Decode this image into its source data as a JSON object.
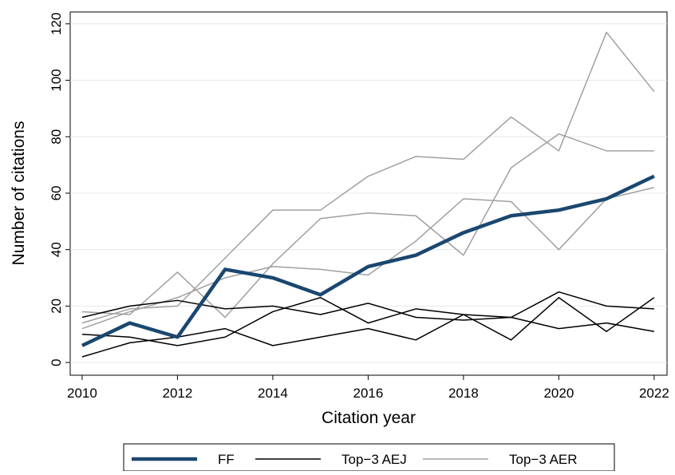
{
  "chart_data": {
    "type": "line",
    "x_label": "Citation year",
    "y_label": "Number of citations",
    "x": [
      2010,
      2011,
      2012,
      2013,
      2014,
      2015,
      2016,
      2017,
      2018,
      2019,
      2020,
      2021,
      2022
    ],
    "xlim": [
      2009.75,
      2022.27
    ],
    "ylim": [
      -4.5,
      124.2
    ],
    "xticks": [
      2010,
      2012,
      2014,
      2016,
      2018,
      2020,
      2022
    ],
    "yticks": [
      0,
      20,
      40,
      60,
      80,
      100,
      120
    ],
    "grid": true,
    "legend": "bottom",
    "series": [
      {
        "name": "FF",
        "color": "#1a476f",
        "width": 4.5,
        "lines": [
          [
            6,
            14,
            9,
            33,
            30,
            24,
            34,
            38,
            46,
            52,
            54,
            58,
            66
          ]
        ]
      },
      {
        "name": "Top−3 AEJ",
        "color": "#000000",
        "width": 1.5,
        "lines": [
          [
            16,
            20,
            22,
            19,
            20,
            17,
            21,
            16,
            15,
            16,
            25,
            20,
            19
          ],
          [
            10,
            9,
            6,
            9,
            18,
            23,
            14,
            19,
            17,
            16,
            12,
            14,
            11
          ],
          [
            2,
            7,
            9,
            12,
            6,
            9,
            12,
            8,
            17,
            8,
            23,
            11,
            23
          ]
        ]
      },
      {
        "name": "Top−3 AER",
        "color": "#a0a0a0",
        "width": 1.5,
        "lines": [
          [
            18,
            17,
            32,
            16,
            35,
            51,
            53,
            52,
            38,
            69,
            81,
            75,
            75
          ],
          [
            14,
            19,
            20,
            37,
            54,
            54,
            66,
            73,
            72,
            87,
            75,
            117,
            96
          ],
          [
            12,
            18,
            23,
            30,
            34,
            33,
            31,
            43,
            58,
            57,
            40,
            58,
            62
          ]
        ]
      }
    ]
  }
}
